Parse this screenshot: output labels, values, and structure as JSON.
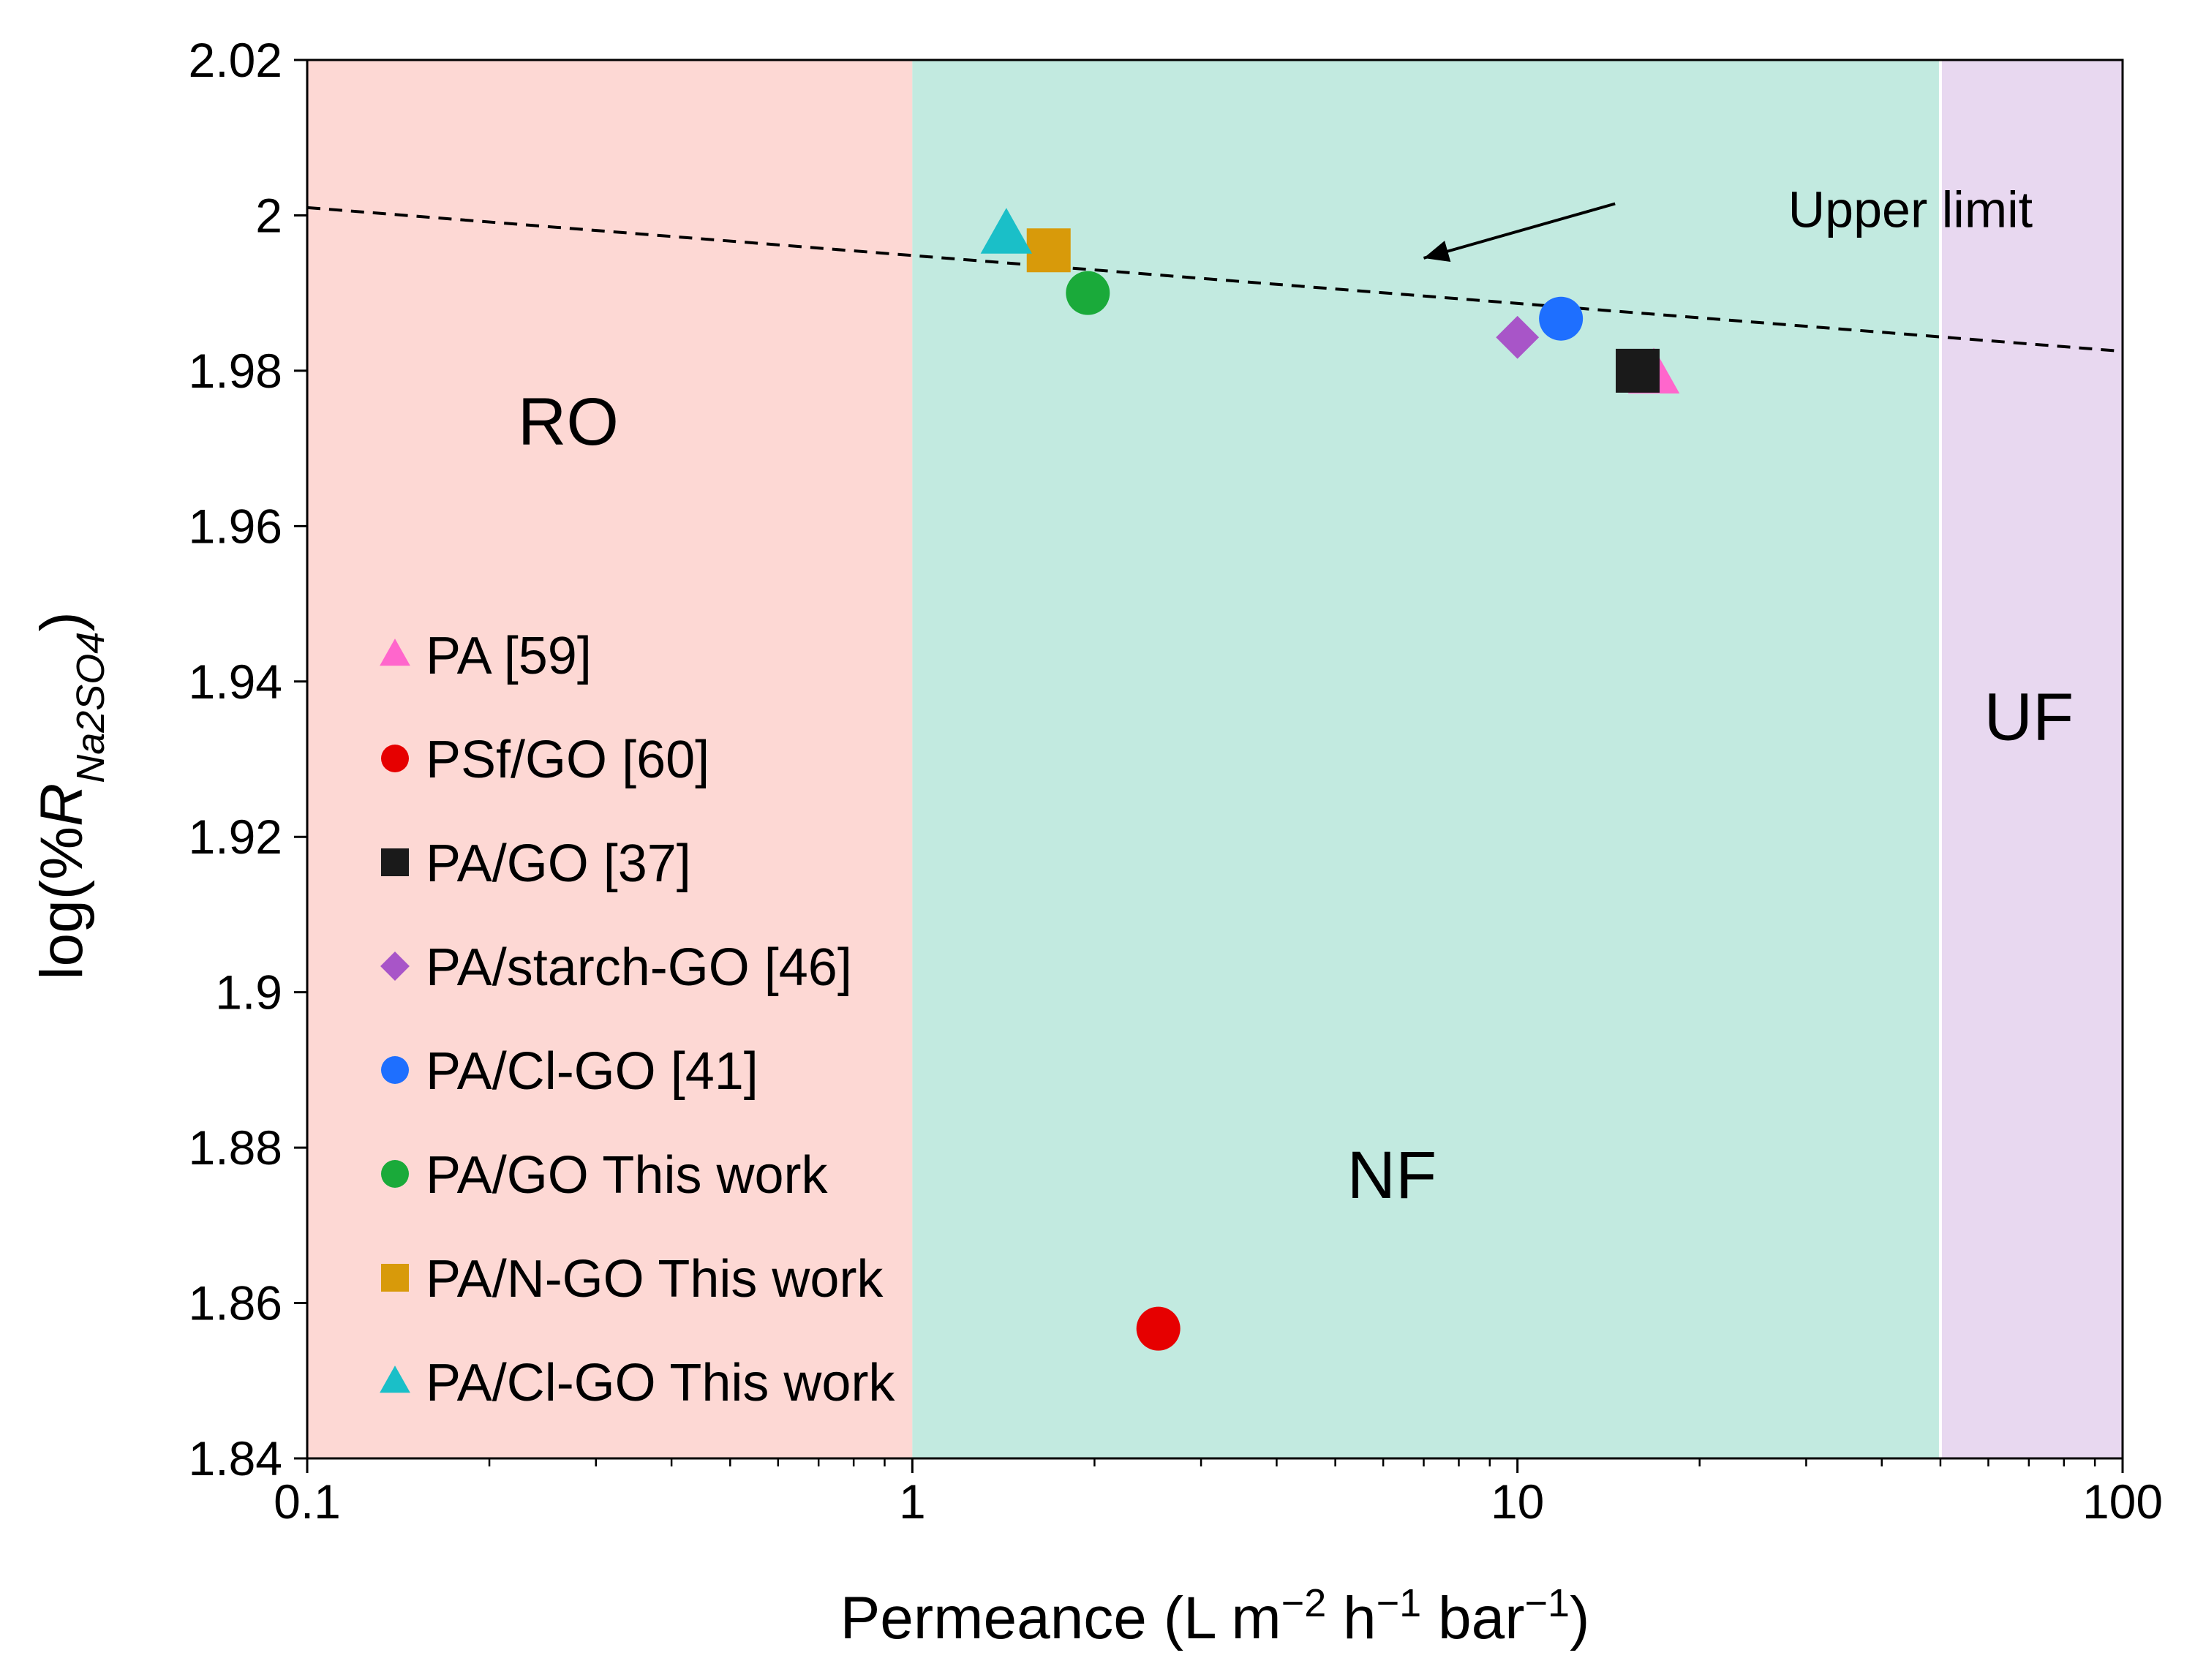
{
  "chart_data": {
    "type": "scatter",
    "x_scale": "log",
    "xlim": [
      0.1,
      100
    ],
    "ylim": [
      1.84,
      2.02
    ],
    "xlabel": {
      "base": "Permeance (L m",
      "sup1": "−2",
      "mid1": " h",
      "sup2": "−1",
      "mid2": " bar",
      "sup3": "−1",
      "end": ")"
    },
    "ylabel": {
      "prefix": "log(%",
      "italic": "R",
      "subscript": "Na2SO4",
      "suffix": ")"
    },
    "x_ticks": [
      {
        "value": 0.1,
        "label": "0.1"
      },
      {
        "value": 1,
        "label": "1"
      },
      {
        "value": 10,
        "label": "10"
      },
      {
        "value": 100,
        "label": "100"
      }
    ],
    "y_ticks": [
      {
        "value": 1.84,
        "label": "1.84"
      },
      {
        "value": 1.86,
        "label": "1.86"
      },
      {
        "value": 1.88,
        "label": "1.88"
      },
      {
        "value": 1.9,
        "label": "1.9"
      },
      {
        "value": 1.92,
        "label": "1.92"
      },
      {
        "value": 1.94,
        "label": "1.94"
      },
      {
        "value": 1.96,
        "label": "1.96"
      },
      {
        "value": 1.98,
        "label": "1.98"
      },
      {
        "value": 2.0,
        "label": "2"
      },
      {
        "value": 2.02,
        "label": "2.02"
      }
    ],
    "regions": [
      {
        "name": "RO",
        "x_from": 0.1,
        "x_to": 1,
        "color": "#FDD8D4",
        "label_at": [
          0.27,
          1.9705
        ]
      },
      {
        "name": "NF",
        "x_from": 1,
        "x_to": 50,
        "color": "#C2EAE0",
        "label_at": [
          6.2,
          1.8735
        ]
      },
      {
        "name": "UF",
        "x_from": 50,
        "x_to": 100,
        "color": "#E8D8F0",
        "label_at": [
          70,
          1.9325
        ]
      }
    ],
    "upper_limit_line": {
      "label": "Upper limit",
      "points": [
        [
          0.1,
          2.001
        ],
        [
          100,
          1.9825
        ]
      ],
      "style": "dashed",
      "label_at": [
        28,
        1.9985
      ],
      "arrow_from": [
        14.5,
        2.0015
      ],
      "arrow_to": [
        7.0,
        1.9945
      ]
    },
    "series": [
      {
        "name": "PA [59]",
        "marker": "triangle",
        "color": "#FF66CC",
        "points": [
          [
            16.8,
            1.9795
          ]
        ]
      },
      {
        "name": "PSf/GO [60]",
        "marker": "circle",
        "color": "#E60000",
        "points": [
          [
            2.55,
            1.8567
          ]
        ]
      },
      {
        "name": "PA/GO [37]",
        "marker": "square",
        "color": "#1A1A1A",
        "points": [
          [
            15.8,
            1.98
          ]
        ]
      },
      {
        "name": "PA/starch-GO [46]",
        "marker": "diamond",
        "color": "#A855C8",
        "points": [
          [
            10.0,
            1.9843
          ]
        ]
      },
      {
        "name": "PA/Cl-GO [41]",
        "marker": "circle",
        "color": "#1E6FFF",
        "points": [
          [
            11.8,
            1.9867
          ]
        ]
      },
      {
        "name": "PA/GO This work",
        "marker": "circle",
        "color": "#1AAA3A",
        "points": [
          [
            1.95,
            1.99
          ]
        ]
      },
      {
        "name": "PA/N-GO This work",
        "marker": "square",
        "color": "#D89A0A",
        "points": [
          [
            1.68,
            1.9955
          ]
        ]
      },
      {
        "name": "PA/Cl-GO  This work",
        "marker": "triangle",
        "color": "#1ABFC8",
        "points": [
          [
            1.43,
            1.9975
          ]
        ]
      }
    ],
    "legend_position": "left, inside plot"
  }
}
